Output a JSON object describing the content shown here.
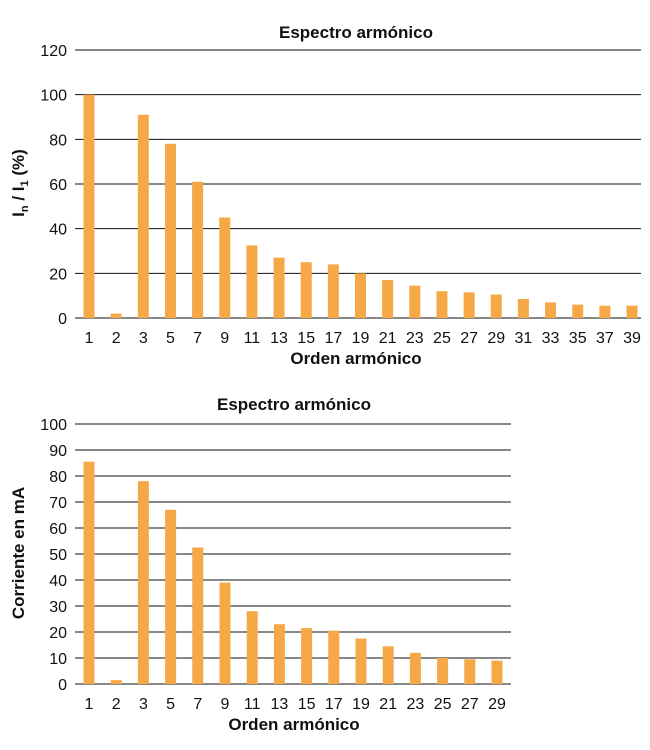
{
  "chart_data": [
    {
      "type": "bar",
      "title": "Espectro armónico",
      "xlabel": "Orden armónico",
      "ylabel": "In / I1 (%)",
      "ylabel_main": "I",
      "ylabel_sub_n": "n",
      "ylabel_mid": " / I",
      "ylabel_sub_1": "1",
      "ylabel_tail": " (%)",
      "categories": [
        "1",
        "2",
        "3",
        "5",
        "7",
        "9",
        "11",
        "13",
        "15",
        "17",
        "19",
        "21",
        "23",
        "25",
        "27",
        "29",
        "31",
        "33",
        "35",
        "37",
        "39"
      ],
      "values": [
        100,
        2,
        91,
        78,
        61,
        45,
        32.5,
        27,
        25,
        24,
        20,
        17,
        14.5,
        12,
        11.5,
        10.5,
        8.5,
        7,
        6,
        5.5,
        5.5
      ],
      "ylim": [
        0,
        120
      ],
      "yticks": [
        0,
        20,
        40,
        60,
        80,
        100,
        120
      ],
      "grid": true,
      "bar_color": "#F6A847"
    },
    {
      "type": "bar",
      "title": "Espectro armónico",
      "xlabel": "Orden armónico",
      "ylabel": "Corriente en mA",
      "categories": [
        "1",
        "2",
        "3",
        "5",
        "7",
        "9",
        "11",
        "13",
        "15",
        "17",
        "19",
        "21",
        "23",
        "25",
        "27",
        "29"
      ],
      "values": [
        85.5,
        1.5,
        78,
        67,
        52.5,
        39,
        28,
        23,
        21.5,
        20.5,
        17.5,
        14.5,
        12,
        10,
        9.5,
        9
      ],
      "ylim": [
        0,
        100
      ],
      "yticks": [
        0,
        10,
        20,
        30,
        40,
        50,
        60,
        70,
        80,
        90,
        100
      ],
      "grid": true,
      "bar_color": "#F6A847"
    }
  ]
}
